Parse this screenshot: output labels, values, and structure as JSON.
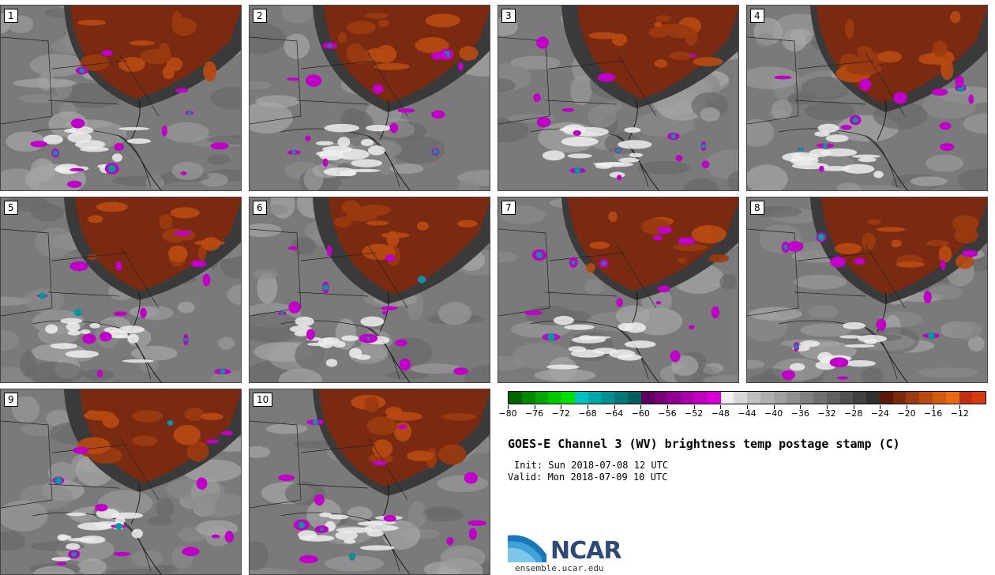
{
  "panels": [
    "1",
    "2",
    "3",
    "4",
    "5",
    "6",
    "7",
    "8",
    "9",
    "10"
  ],
  "title": "GOES-E Channel 3 (WV) brightness temp postage stamp (C)",
  "init": "Init: Sun 2018-07-08 12 UTC",
  "valid": "Valid: Mon 2018-07-09 10 UTC",
  "colorbar": {
    "tick_labels": [
      "−80",
      "−76",
      "−72",
      "−68",
      "−64",
      "−60",
      "−56",
      "−52",
      "−48",
      "−44",
      "−40",
      "−36",
      "−32",
      "−28",
      "−24",
      "−20",
      "−16",
      "−12"
    ],
    "colors": [
      "#006400",
      "#008a00",
      "#00a800",
      "#00c800",
      "#00e000",
      "#00c0c0",
      "#00a8a8",
      "#009090",
      "#007878",
      "#006060",
      "#600060",
      "#780078",
      "#900090",
      "#a800a8",
      "#c000c0",
      "#d800d8",
      "#f0f0f0",
      "#d8d8d8",
      "#c0c0c0",
      "#b0b0b0",
      "#a0a0a0",
      "#909090",
      "#808080",
      "#707070",
      "#606060",
      "#505050",
      "#404040",
      "#303030",
      "#5a1a0a",
      "#7a2a0a",
      "#9a3a10",
      "#ba4a10",
      "#d05a10",
      "#e86a10",
      "#c03010",
      "#d83a10"
    ]
  },
  "logo": {
    "name": "NCAR",
    "url": "ensemble.ucar.edu"
  }
}
